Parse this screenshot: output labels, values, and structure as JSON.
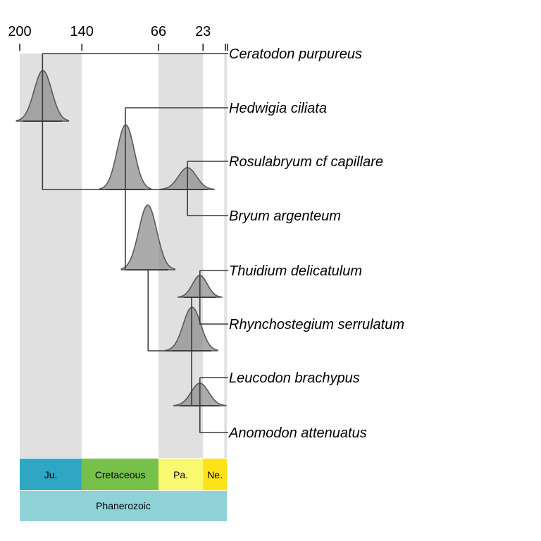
{
  "time_axis": {
    "ticks": [
      {
        "ma": 200,
        "label": "200"
      },
      {
        "ma": 140,
        "label": "140"
      },
      {
        "ma": 66,
        "label": "66"
      },
      {
        "ma": 23,
        "label": "23"
      },
      {
        "ma": 0,
        "label": ""
      }
    ]
  },
  "taxa": [
    "Ceratodon purpureus",
    "Hedwigia ciliata",
    "Rosulabryum cf capillare",
    "Bryum argenteum",
    "Thuidium delicatulum",
    "Rhynchostegium serrulatum",
    "Leucodon brachypus",
    "Anomodon attenuatus"
  ],
  "node_ages_ma": {
    "root": 178,
    "mosses_core": 98,
    "bryum_pair": 38,
    "pleurocarps": 76,
    "thuidium_rhyncho": 26,
    "hypnales": 34,
    "leucodon_anomodon": 26
  },
  "periods": [
    {
      "label": "Ju.",
      "start": 200,
      "end": 140,
      "color": "#2ea6c4"
    },
    {
      "label": "Cretaceous",
      "start": 140,
      "end": 66,
      "color": "#77c14a"
    },
    {
      "label": "Pa.",
      "start": 66,
      "end": 23,
      "color": "#f8f96f"
    },
    {
      "label": "Ne.",
      "start": 23,
      "end": 0,
      "color": "#fde21a"
    }
  ],
  "eon": {
    "label": "Phanerozoic",
    "color": "#8fd3d8"
  },
  "shading_color": "#e0e0e0"
}
